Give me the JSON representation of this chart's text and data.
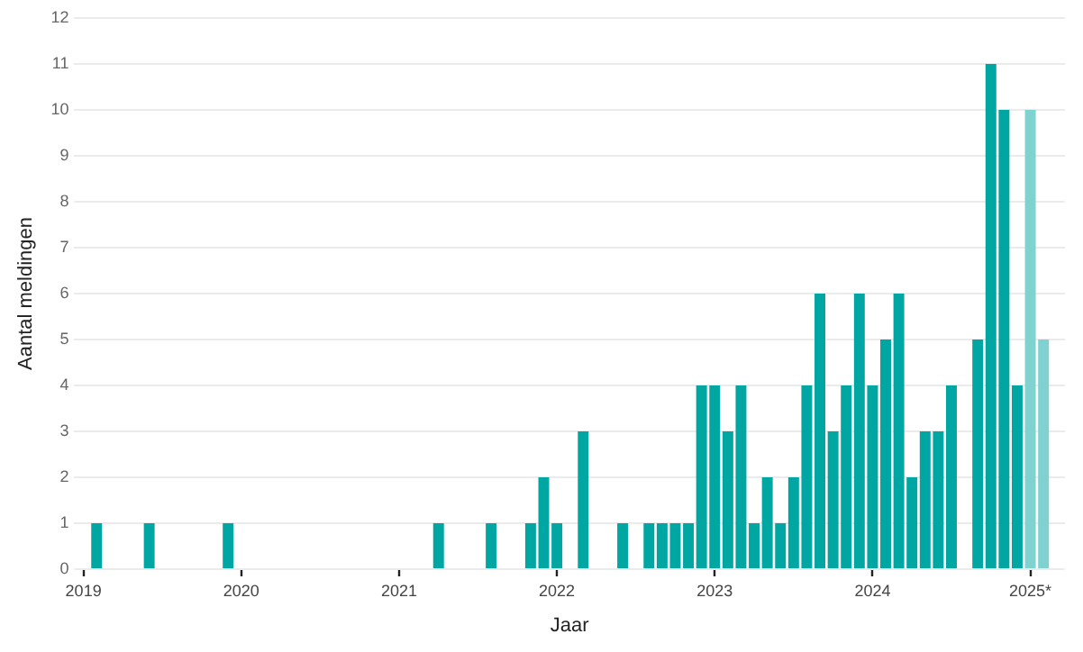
{
  "chart_data": {
    "type": "bar",
    "xlabel": "Jaar",
    "ylabel": "Aantal meldingen",
    "x": [
      "2019-02",
      "2019-06",
      "2019-12",
      "2021-04",
      "2021-08",
      "2021-11",
      "2021-12",
      "2022-01",
      "2022-03",
      "2022-06",
      "2022-08",
      "2022-09",
      "2022-10",
      "2022-11",
      "2022-12",
      "2023-01",
      "2023-02",
      "2023-03",
      "2023-04",
      "2023-05",
      "2023-06",
      "2023-07",
      "2023-08",
      "2023-09",
      "2023-10",
      "2023-11",
      "2023-12",
      "2024-01",
      "2024-02",
      "2024-03",
      "2024-04",
      "2024-05",
      "2024-06",
      "2024-07",
      "2024-09",
      "2024-10",
      "2024-11",
      "2024-12",
      "2025-01",
      "2025-02"
    ],
    "values": [
      1,
      1,
      1,
      1,
      1,
      1,
      2,
      1,
      3,
      1,
      1,
      1,
      1,
      1,
      4,
      4,
      3,
      4,
      1,
      2,
      1,
      2,
      4,
      6,
      3,
      4,
      6,
      4,
      5,
      6,
      2,
      3,
      3,
      4,
      5,
      11,
      10,
      4,
      10,
      5
    ],
    "colors": [
      "#00a6a2",
      "#00a6a2",
      "#00a6a2",
      "#00a6a2",
      "#00a6a2",
      "#00a6a2",
      "#00a6a2",
      "#00a6a2",
      "#00a6a2",
      "#00a6a2",
      "#00a6a2",
      "#00a6a2",
      "#00a6a2",
      "#00a6a2",
      "#00a6a2",
      "#00a6a2",
      "#00a6a2",
      "#00a6a2",
      "#00a6a2",
      "#00a6a2",
      "#00a6a2",
      "#00a6a2",
      "#00a6a2",
      "#00a6a2",
      "#00a6a2",
      "#00a6a2",
      "#00a6a2",
      "#00a6a2",
      "#00a6a2",
      "#00a6a2",
      "#00a6a2",
      "#00a6a2",
      "#00a6a2",
      "#00a6a2",
      "#00a6a2",
      "#00a6a2",
      "#00a6a2",
      "#00a6a2",
      "#7fd2d0",
      "#7fd2d0"
    ],
    "xlim": [
      "2018-12-10",
      "2025-03-20"
    ],
    "xticks": [
      "2019",
      "2020",
      "2021",
      "2022",
      "2023",
      "2024",
      {
        "value": "2025",
        "label": "2025*"
      }
    ],
    "ylim": [
      0,
      12
    ],
    "yticks": [
      0,
      1,
      2,
      3,
      4,
      5,
      6,
      7,
      8,
      9,
      10,
      11,
      12
    ],
    "grid": "y",
    "legend": false
  }
}
